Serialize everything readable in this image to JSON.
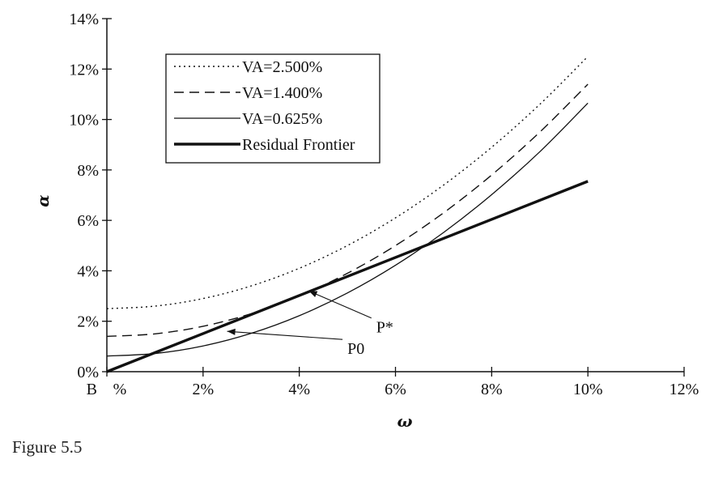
{
  "chart_data": {
    "type": "line",
    "xlabel": "ω",
    "ylabel": "α",
    "xlim": [
      0,
      12
    ],
    "ylim": [
      0,
      14
    ],
    "x_ticks": [
      {
        "v": 0,
        "label": "%"
      },
      {
        "v": 2,
        "label": "2%"
      },
      {
        "v": 4,
        "label": "4%"
      },
      {
        "v": 6,
        "label": "6%"
      },
      {
        "v": 8,
        "label": "8%"
      },
      {
        "v": 10,
        "label": "10%"
      },
      {
        "v": 12,
        "label": "12%"
      }
    ],
    "y_ticks": [
      {
        "v": 0,
        "label": "0%"
      },
      {
        "v": 2,
        "label": "2%"
      },
      {
        "v": 4,
        "label": "4%"
      },
      {
        "v": 6,
        "label": "6%"
      },
      {
        "v": 8,
        "label": "8%"
      },
      {
        "v": 10,
        "label": "10%"
      },
      {
        "v": 12,
        "label": "12%"
      },
      {
        "v": 14,
        "label": "14%"
      }
    ],
    "origin_label": "B",
    "legend_position": "top-left",
    "series": [
      {
        "name": "VA=2.500%",
        "style": "dotted",
        "x": [
          0,
          1,
          2,
          3,
          4,
          5,
          6,
          7,
          8,
          9,
          10
        ],
        "y": [
          2.5,
          2.6,
          2.9,
          3.4,
          4.1,
          5.0,
          6.1,
          7.4,
          8.9,
          10.6,
          12.5
        ]
      },
      {
        "name": "VA=1.400%",
        "style": "dashed",
        "x": [
          0,
          1,
          2,
          3,
          4,
          5,
          6,
          7,
          8,
          9,
          10
        ],
        "y": [
          1.4,
          1.5,
          1.8,
          2.3,
          3.0,
          3.9,
          5.0,
          6.3,
          7.8,
          9.5,
          11.4
        ]
      },
      {
        "name": "VA=0.625%",
        "style": "solid-thin",
        "x": [
          0,
          1,
          2,
          3,
          4,
          5,
          6,
          7,
          8,
          9,
          10
        ],
        "y": [
          0.62,
          0.72,
          1.02,
          1.52,
          2.22,
          3.12,
          4.22,
          5.52,
          7.02,
          8.72,
          10.65
        ]
      },
      {
        "name": "Residual Frontier",
        "style": "solid-thick",
        "x": [
          0,
          10
        ],
        "y": [
          0,
          7.55
        ]
      }
    ],
    "annotations": [
      {
        "text": "P*",
        "x": 5.6,
        "y": 1.55,
        "arrow_to": [
          4.2,
          3.2
        ]
      },
      {
        "text": "P0",
        "x": 5.0,
        "y": 0.7,
        "arrow_to": [
          2.5,
          1.6
        ]
      }
    ]
  },
  "caption": "Figure 5.5"
}
